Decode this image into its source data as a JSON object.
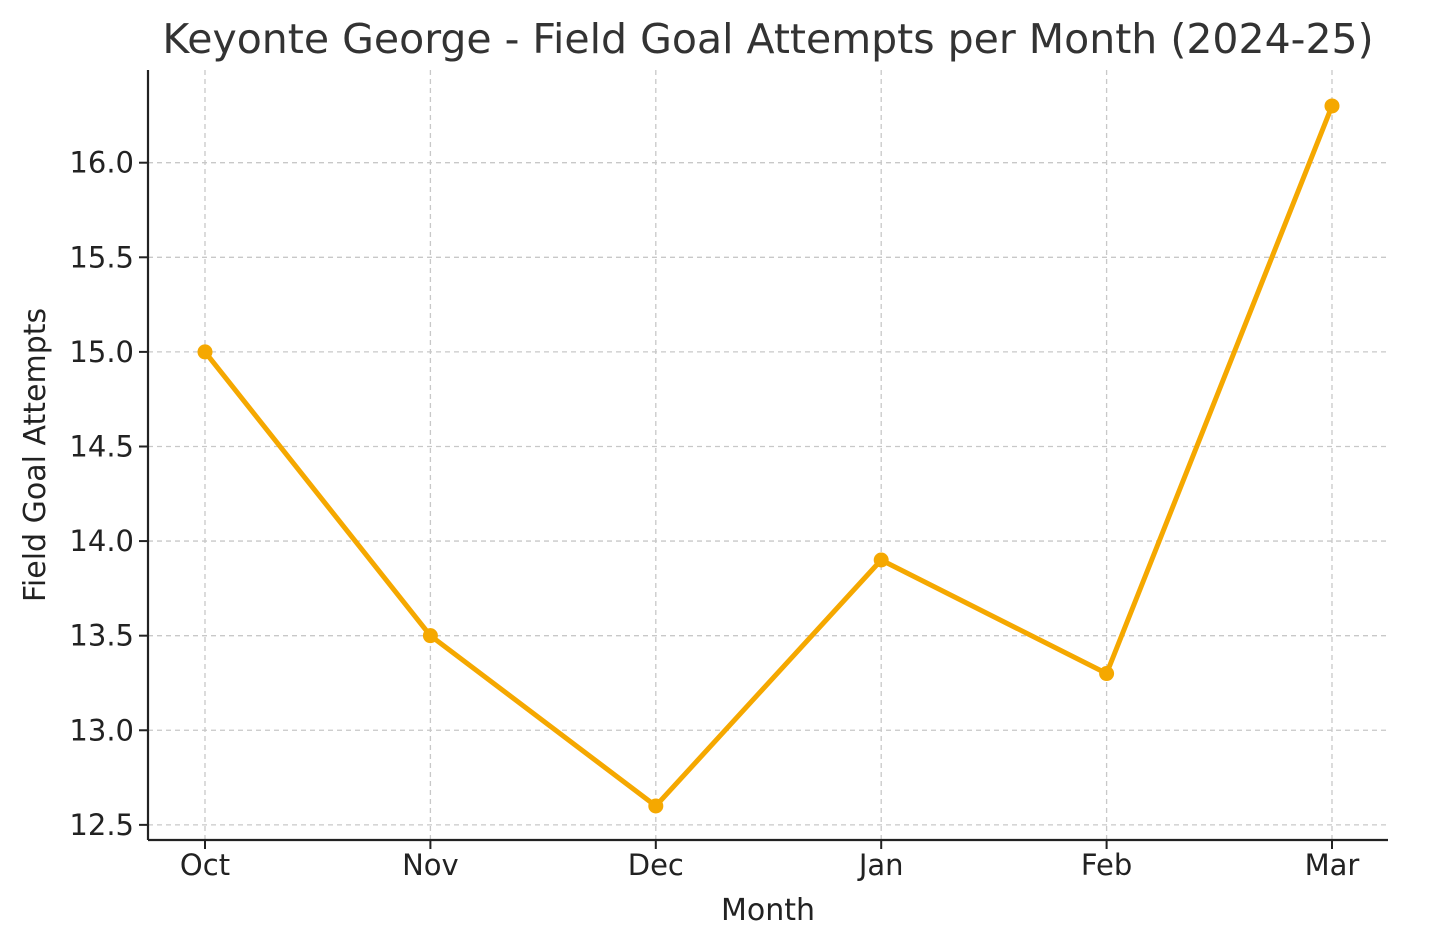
{
  "chart_data": {
    "type": "line",
    "title": "Keyonte George - Field Goal Attempts per Month (2024-25)",
    "xlabel": "Month",
    "ylabel": "Field Goal Attempts",
    "categories": [
      "Oct",
      "Nov",
      "Dec",
      "Jan",
      "Feb",
      "Mar"
    ],
    "series": [
      {
        "values": [
          15.0,
          13.5,
          12.6,
          13.9,
          13.3,
          16.3
        ],
        "color": "#f5a800",
        "marker": "circle"
      }
    ],
    "yticks": [
      12.5,
      13.0,
      13.5,
      14.0,
      14.5,
      15.0,
      15.5,
      16.0
    ],
    "ytick_labels": [
      "12.5",
      "13.0",
      "13.5",
      "14.0",
      "14.5",
      "15.0",
      "15.5",
      "16.0"
    ],
    "ylim": [
      12.42,
      16.49
    ],
    "grid": true,
    "legend": "none"
  }
}
